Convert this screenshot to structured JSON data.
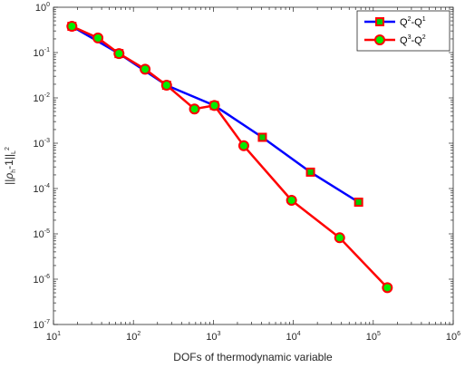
{
  "chart_data": {
    "type": "line",
    "xscale": "log",
    "yscale": "log",
    "xlim": [
      10,
      1000000
    ],
    "ylim": [
      1e-07,
      1
    ],
    "x_ticks": [
      {
        "base": "10",
        "exp": "1"
      },
      {
        "base": "10",
        "exp": "2"
      },
      {
        "base": "10",
        "exp": "3"
      },
      {
        "base": "10",
        "exp": "4"
      },
      {
        "base": "10",
        "exp": "5"
      },
      {
        "base": "10",
        "exp": "6"
      }
    ],
    "y_ticks": [
      {
        "base": "10",
        "exp": "-7"
      },
      {
        "base": "10",
        "exp": "-6"
      },
      {
        "base": "10",
        "exp": "-5"
      },
      {
        "base": "10",
        "exp": "-4"
      },
      {
        "base": "10",
        "exp": "-3"
      },
      {
        "base": "10",
        "exp": "-2"
      },
      {
        "base": "10",
        "exp": "-1"
      },
      {
        "base": "10",
        "exp": "0"
      }
    ],
    "xlabel": "DOFs of thermodynamic variable",
    "ylabel": {
      "pre": "||",
      "rho": "ρ",
      "h_sub": "h",
      "mid": "-1||",
      "L": "L",
      "two": "2"
    },
    "legend_position": "top-right",
    "grid": false,
    "series": [
      {
        "legend": {
          "a": "Q",
          "a_sup": "2",
          "dash": "-",
          "b": "Q",
          "b_sup": "1"
        },
        "marker": "square",
        "line_color": "#0000ff",
        "marker_face": "#00cc00",
        "marker_edge": "#ff0000",
        "x": [
          17,
          66,
          260,
          1030,
          4100,
          16400,
          65600
        ],
        "y": [
          0.38,
          0.095,
          0.019,
          0.0068,
          0.00135,
          0.00023,
          5e-05
        ]
      },
      {
        "legend": {
          "a": "Q",
          "a_sup": "3",
          "dash": "-",
          "b": "Q",
          "b_sup": "2"
        },
        "marker": "circle",
        "line_color": "#ff0000",
        "marker_face": "#00ee00",
        "marker_edge": "#ff0000",
        "x": [
          17,
          36,
          66,
          140,
          260,
          580,
          1030,
          2400,
          9500,
          38000,
          150000
        ],
        "y": [
          0.38,
          0.21,
          0.095,
          0.043,
          0.019,
          0.0057,
          0.0068,
          0.00088,
          5.5e-05,
          8.2e-06,
          6.5e-07
        ]
      }
    ]
  }
}
